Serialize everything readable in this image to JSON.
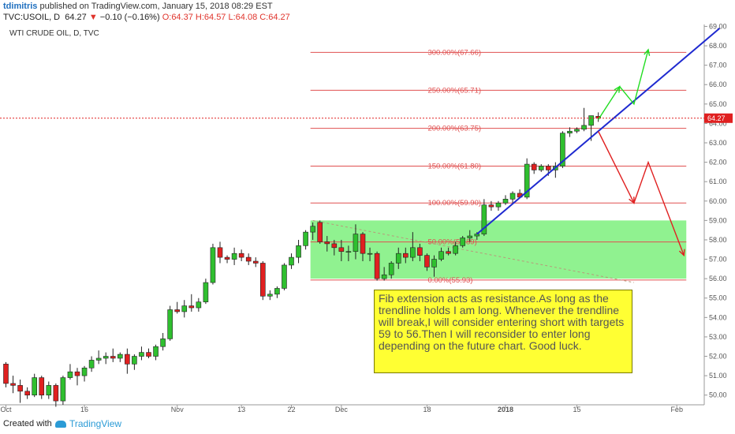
{
  "header": {
    "author": "tdimitris",
    "published": "published on TradingView.com, January 15, 2018 08:29 EST",
    "symbol": "TVC:USOIL, D",
    "last": "64.27",
    "change": "−0.10 (−0.16%)",
    "ohlc": "O:64.37 H:64.57 L:64.08 C:64.27"
  },
  "footer": {
    "created": "Created with",
    "brand": "TradingView"
  },
  "chart_data": {
    "type": "candlestick",
    "title": "WTI CRUDE OIL, D, TVC",
    "ylim": [
      49.5,
      69.1
    ],
    "y_ticks": [
      "50.00",
      "51.00",
      "52.00",
      "53.00",
      "54.00",
      "55.00",
      "56.00",
      "57.00",
      "58.00",
      "59.00",
      "60.00",
      "61.00",
      "62.00",
      "63.00",
      "64.00",
      "65.00",
      "66.00",
      "67.00",
      "68.00",
      "69.00"
    ],
    "x_ticks": [
      "Oct",
      "16",
      "Nov",
      "13",
      "22",
      "Dec",
      "18",
      "2018",
      "15",
      "Feb"
    ],
    "x_tick_index": [
      0,
      11,
      24,
      33,
      40,
      47,
      59,
      70,
      80,
      94
    ],
    "last_price_label": "64.27",
    "colors": {
      "up": "#2fbf2f",
      "down": "#e02020",
      "fib": "#e05050",
      "trend": "#1f2ad0",
      "zone": "#7cf07c",
      "note_bg": "#ffff33"
    },
    "candles": [
      [
        51.6,
        51.7,
        50.4,
        50.6
      ],
      [
        50.6,
        51.0,
        50.1,
        50.5
      ],
      [
        50.5,
        50.8,
        49.6,
        50.2
      ],
      [
        50.2,
        50.4,
        49.8,
        50.0
      ],
      [
        50.0,
        51.1,
        49.9,
        50.9
      ],
      [
        50.9,
        51.0,
        49.8,
        50.0
      ],
      [
        50.0,
        50.7,
        49.8,
        50.5
      ],
      [
        50.5,
        50.6,
        49.4,
        49.7
      ],
      [
        49.7,
        51.0,
        49.5,
        50.9
      ],
      [
        50.9,
        51.6,
        50.8,
        51.2
      ],
      [
        51.2,
        51.4,
        50.5,
        51.0
      ],
      [
        51.0,
        51.5,
        50.7,
        51.4
      ],
      [
        51.4,
        52.0,
        51.2,
        51.8
      ],
      [
        51.8,
        52.3,
        51.6,
        51.9
      ],
      [
        51.9,
        52.2,
        51.6,
        52.0
      ],
      [
        52.0,
        52.4,
        51.7,
        51.9
      ],
      [
        51.9,
        52.2,
        51.7,
        52.1
      ],
      [
        52.1,
        52.4,
        51.1,
        51.6
      ],
      [
        51.6,
        52.1,
        51.3,
        52.0
      ],
      [
        52.0,
        52.5,
        51.8,
        52.2
      ],
      [
        52.2,
        52.4,
        51.9,
        52.0
      ],
      [
        52.0,
        52.6,
        51.8,
        52.5
      ],
      [
        52.5,
        53.2,
        52.3,
        52.9
      ],
      [
        52.9,
        54.6,
        52.8,
        54.4
      ],
      [
        54.4,
        54.8,
        54.2,
        54.3
      ],
      [
        54.3,
        54.9,
        54.0,
        54.6
      ],
      [
        54.6,
        55.2,
        54.3,
        54.5
      ],
      [
        54.5,
        55.0,
        54.3,
        54.8
      ],
      [
        54.8,
        56.0,
        54.7,
        55.8
      ],
      [
        55.8,
        57.8,
        55.7,
        57.6
      ],
      [
        57.6,
        57.9,
        56.8,
        57.1
      ],
      [
        57.1,
        57.2,
        56.8,
        57.0
      ],
      [
        57.0,
        57.6,
        56.7,
        57.3
      ],
      [
        57.3,
        57.5,
        56.9,
        57.1
      ],
      [
        57.1,
        57.3,
        56.7,
        56.9
      ],
      [
        56.9,
        57.1,
        56.6,
        56.8
      ],
      [
        56.8,
        56.9,
        54.9,
        55.1
      ],
      [
        55.1,
        55.4,
        54.9,
        55.2
      ],
      [
        55.2,
        55.6,
        55.0,
        55.5
      ],
      [
        55.5,
        56.8,
        55.4,
        56.7
      ],
      [
        56.7,
        57.3,
        56.5,
        57.1
      ],
      [
        57.1,
        58.0,
        56.8,
        57.7
      ],
      [
        57.7,
        58.5,
        57.5,
        58.4
      ],
      [
        58.4,
        58.9,
        58.0,
        58.7
      ],
      [
        58.9,
        59.0,
        57.8,
        57.9
      ],
      [
        57.9,
        58.2,
        57.4,
        57.8
      ],
      [
        57.8,
        58.0,
        57.2,
        57.6
      ],
      [
        57.6,
        58.0,
        56.9,
        57.4
      ],
      [
        57.4,
        57.7,
        56.9,
        57.4
      ],
      [
        57.4,
        58.8,
        57.0,
        58.3
      ],
      [
        58.3,
        58.4,
        56.9,
        57.3
      ],
      [
        57.3,
        57.6,
        56.9,
        57.3
      ],
      [
        57.3,
        57.4,
        55.9,
        56.0
      ],
      [
        56.0,
        56.6,
        55.9,
        56.2
      ],
      [
        56.2,
        56.9,
        56.0,
        56.8
      ],
      [
        56.8,
        57.6,
        56.5,
        57.3
      ],
      [
        57.3,
        57.6,
        56.8,
        57.1
      ],
      [
        57.1,
        58.4,
        56.9,
        57.6
      ],
      [
        57.6,
        57.8,
        56.9,
        57.2
      ],
      [
        57.2,
        57.3,
        56.4,
        56.6
      ],
      [
        56.6,
        57.2,
        56.1,
        57.0
      ],
      [
        57.0,
        57.6,
        56.9,
        57.4
      ],
      [
        57.4,
        57.6,
        57.2,
        57.3
      ],
      [
        57.3,
        57.9,
        57.2,
        57.7
      ],
      [
        57.7,
        58.2,
        57.6,
        58.1
      ],
      [
        58.1,
        58.5,
        57.9,
        58.2
      ],
      [
        58.2,
        58.4,
        58.0,
        58.3
      ],
      [
        58.3,
        60.1,
        58.2,
        59.8
      ],
      [
        59.8,
        60.0,
        59.5,
        59.7
      ],
      [
        59.7,
        60.0,
        59.5,
        59.9
      ],
      [
        59.9,
        60.3,
        59.8,
        60.1
      ],
      [
        60.1,
        60.5,
        59.9,
        60.4
      ],
      [
        60.4,
        60.6,
        60.2,
        60.2
      ],
      [
        60.2,
        62.2,
        60.1,
        61.9
      ],
      [
        61.9,
        62.0,
        61.4,
        61.6
      ],
      [
        61.6,
        61.9,
        61.5,
        61.8
      ],
      [
        61.8,
        61.9,
        61.3,
        61.6
      ],
      [
        61.6,
        62.0,
        61.2,
        61.8
      ],
      [
        61.8,
        63.6,
        61.7,
        63.5
      ],
      [
        63.5,
        63.8,
        63.3,
        63.6
      ],
      [
        63.6,
        63.8,
        63.5,
        63.7
      ],
      [
        63.7,
        64.8,
        63.6,
        63.9
      ],
      [
        63.9,
        64.4,
        63.1,
        64.4
      ],
      [
        64.37,
        64.57,
        64.08,
        64.27
      ]
    ],
    "fib_levels": [
      {
        "label": "0.00%(55.93)",
        "price": 55.93
      },
      {
        "label": "50.00%(57.89)",
        "price": 57.89
      },
      {
        "label": "100.00%(59.90)",
        "price": 59.9
      },
      {
        "label": "150.00%(61.80)",
        "price": 61.8
      },
      {
        "label": "200.00%(63.75)",
        "price": 63.75
      },
      {
        "label": "250.00%(65.71)",
        "price": 65.71
      },
      {
        "label": "300.00%(67.66)",
        "price": 67.66
      }
    ],
    "zone": {
      "x0": 43,
      "x1": 95,
      "y0": 56.0,
      "y1": 59.0
    },
    "trendline": [
      [
        66,
        58.3
      ],
      [
        100,
        68.9
      ]
    ],
    "dashed_trend": [
      [
        43,
        59.0
      ],
      [
        88,
        55.8
      ]
    ],
    "green_path": [
      [
        83,
        64.2
      ],
      [
        86,
        65.9
      ],
      [
        88,
        65.0
      ],
      [
        90,
        67.8
      ]
    ],
    "red_path": [
      [
        83,
        63.6
      ],
      [
        88,
        59.9
      ],
      [
        90,
        62.0
      ],
      [
        95,
        57.2
      ]
    ],
    "note": "Fib extension acts as resistance.As long as the trendline holds I am long. Whenever the trendline will break,I will consider entering short with targets 59 to 56.Then I will reconsider to enter long depending on the future chart. Good luck."
  }
}
